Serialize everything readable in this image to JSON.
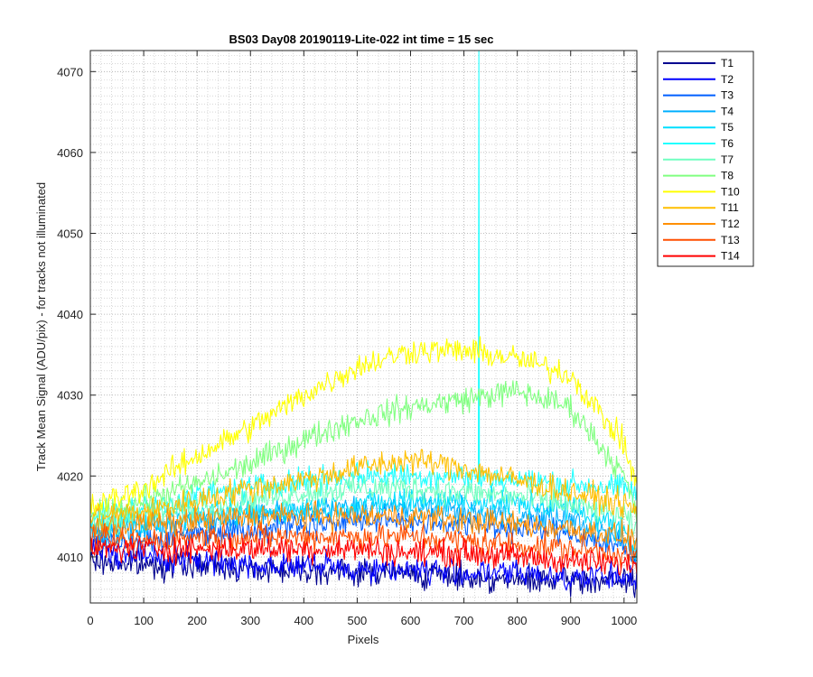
{
  "chart_data": {
    "type": "line",
    "title": "BS03 Day08 20190119-Lite-022 int time = 15 sec",
    "xlabel": "Pixels",
    "ylabel": "Track Mean Signal (ADU/pix) - for tracks not illuminated",
    "xlim": [
      0,
      1024
    ],
    "ylim": [
      4004.3,
      4072.6
    ],
    "xticks": [
      0,
      100,
      200,
      300,
      400,
      500,
      600,
      700,
      800,
      900,
      1000
    ],
    "yticks": [
      4010,
      4020,
      4030,
      4040,
      4050,
      4060,
      4070
    ],
    "grid": "major and minor, dotted",
    "legend_position": "outside-right-top",
    "x_sample": [
      0,
      100,
      200,
      300,
      400,
      500,
      600,
      700,
      800,
      900,
      1000,
      1024
    ],
    "series": [
      {
        "name": "T1",
        "color": "#00008f",
        "y": [
          4009.5,
          4009.0,
          4009.0,
          4008.5,
          4008.5,
          4008.0,
          4008.0,
          4007.5,
          4007.0,
          4007.0,
          4007.0,
          4007.0
        ]
      },
      {
        "name": "T2",
        "color": "#0000ff",
        "y": [
          4011.0,
          4010.0,
          4009.5,
          4009.0,
          4009.0,
          4008.5,
          4008.5,
          4008.0,
          4008.0,
          4007.5,
          4007.5,
          4007.5
        ]
      },
      {
        "name": "T3",
        "color": "#005fff",
        "y": [
          4012.0,
          4012.0,
          4013.0,
          4013.5,
          4014.0,
          4014.5,
          4014.5,
          4014.0,
          4013.5,
          4013.0,
          4011.0,
          4009.0
        ]
      },
      {
        "name": "T4",
        "color": "#00afff",
        "y": [
          4013.0,
          4013.5,
          4014.5,
          4015.0,
          4015.5,
          4016.0,
          4016.0,
          4015.5,
          4015.0,
          4014.5,
          4012.0,
          4009.5
        ]
      },
      {
        "name": "T5",
        "color": "#00dfff",
        "y": [
          4014.0,
          4014.5,
          4015.0,
          4015.5,
          4016.0,
          4016.5,
          4017.0,
          4017.0,
          4016.5,
          4016.0,
          4013.5,
          4011.0
        ]
      },
      {
        "name": "T6",
        "color": "#20ffff",
        "y": [
          4015.0,
          4016.0,
          4017.5,
          4018.5,
          4019.5,
          4020.0,
          4020.0,
          4020.0,
          4019.5,
          4019.0,
          4018.5,
          4018.0
        ]
      },
      {
        "name": "T7",
        "color": "#70ffc0",
        "y": [
          4014.0,
          4015.0,
          4016.0,
          4017.0,
          4018.0,
          4018.5,
          4018.5,
          4018.0,
          4017.5,
          4016.5,
          4015.0,
          4013.0
        ]
      },
      {
        "name": "T8",
        "color": "#80ff80",
        "y": [
          4015.0,
          4017.0,
          4019.0,
          4021.5,
          4024.5,
          4027.0,
          4028.5,
          4029.5,
          4030.5,
          4028.5,
          4020.0,
          4015.0
        ]
      },
      {
        "name": "T10",
        "color": "#ffff00",
        "y": [
          4016.0,
          4018.5,
          4022.5,
          4026.0,
          4030.0,
          4033.5,
          4035.5,
          4035.5,
          4034.5,
          4032.5,
          4024.0,
          4018.5
        ]
      },
      {
        "name": "T11",
        "color": "#ffbf00",
        "y": [
          4015.0,
          4015.5,
          4017.0,
          4018.5,
          4019.5,
          4021.0,
          4022.0,
          4021.0,
          4019.5,
          4018.0,
          4016.5,
          4015.5
        ]
      },
      {
        "name": "T12",
        "color": "#ff8f00",
        "y": [
          4013.5,
          4014.0,
          4014.5,
          4015.0,
          4015.0,
          4015.0,
          4015.0,
          4014.5,
          4014.0,
          4013.5,
          4012.5,
          4012.0
        ]
      },
      {
        "name": "T13",
        "color": "#ff4f00",
        "y": [
          4012.0,
          4012.0,
          4012.5,
          4012.5,
          4012.5,
          4012.5,
          4012.5,
          4012.0,
          4011.5,
          4011.0,
          4010.5,
          4010.0
        ]
      },
      {
        "name": "T14",
        "color": "#ff0000",
        "y": [
          4011.0,
          4011.0,
          4011.0,
          4011.0,
          4011.0,
          4011.0,
          4010.5,
          4010.5,
          4010.0,
          4009.5,
          4009.0,
          4009.0
        ]
      }
    ],
    "noise_amplitude": 1.6,
    "spike": {
      "series": "T6",
      "x": 728,
      "y_min": 4019.0,
      "y_max": 4072.6
    }
  }
}
